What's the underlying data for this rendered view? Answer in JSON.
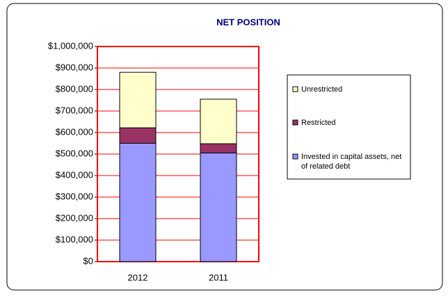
{
  "chart_data": {
    "type": "stacked_bar",
    "title": "NET POSITION",
    "categories": [
      "2012",
      "2011"
    ],
    "series": [
      {
        "name": "Invested in capital assets, net of related debt",
        "color": "#9999FF",
        "values": [
          550000,
          505000
        ]
      },
      {
        "name": "Restricted",
        "color": "#993366",
        "values": [
          72000,
          43000
        ]
      },
      {
        "name": "Unrestricted",
        "color": "#FFFFCC",
        "values": [
          258000,
          207000
        ]
      }
    ],
    "ylim": [
      0,
      1000000
    ],
    "yticks": [
      {
        "value": 0,
        "label": "$0"
      },
      {
        "value": 100000,
        "label": "$100,000"
      },
      {
        "value": 200000,
        "label": "$200,000"
      },
      {
        "value": 300000,
        "label": "$300,000"
      },
      {
        "value": 400000,
        "label": "$400,000"
      },
      {
        "value": 500000,
        "label": "$500,000"
      },
      {
        "value": 600000,
        "label": "$600,000"
      },
      {
        "value": 700000,
        "label": "$700,000"
      },
      {
        "value": 800000,
        "label": "$800,000"
      },
      {
        "value": 900000,
        "label": "$900,000"
      },
      {
        "value": 1000000,
        "label": "$1,000,000"
      }
    ],
    "grid": true,
    "grid_color": "#FF0000",
    "legend": "right"
  }
}
